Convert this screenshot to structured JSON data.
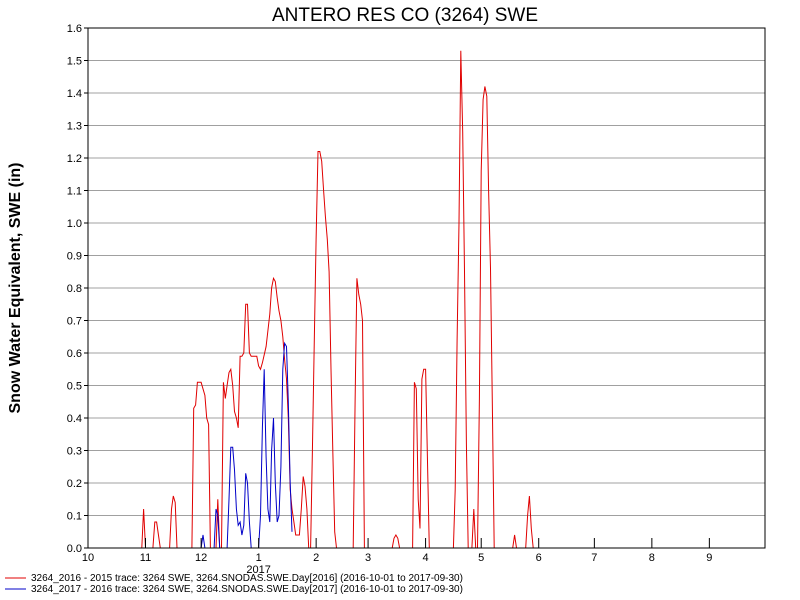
{
  "chart_data": {
    "type": "line",
    "title": "ANTERO RES CO (3264) SWE",
    "ylabel": "Snow Water Equivalent, SWE (in)",
    "xlabel": "",
    "ylim": [
      0,
      1.6
    ],
    "yticks": [
      "0.0",
      "0.1",
      "0.2",
      "0.3",
      "0.4",
      "0.5",
      "0.6",
      "0.7",
      "0.8",
      "0.9",
      "1.0",
      "1.1",
      "1.2",
      "1.3",
      "1.4",
      "1.5",
      "1.6"
    ],
    "xticks": [
      {
        "label": "10",
        "date": "2016-10-01"
      },
      {
        "label": "11",
        "date": "2016-11-01"
      },
      {
        "label": "12",
        "date": "2016-12-01"
      },
      {
        "label": "1",
        "date": "2017-01-01"
      },
      {
        "label": "2",
        "date": "2017-02-01"
      },
      {
        "label": "3",
        "date": "2017-03-01"
      },
      {
        "label": "4",
        "date": "2017-04-01"
      },
      {
        "label": "5",
        "date": "2017-05-01"
      },
      {
        "label": "6",
        "date": "2017-06-01"
      },
      {
        "label": "7",
        "date": "2017-07-01"
      },
      {
        "label": "8",
        "date": "2017-08-01"
      },
      {
        "label": "9",
        "date": "2017-09-01"
      }
    ],
    "year_label": "2017",
    "xlim": [
      "2016-10-01",
      "2017-09-30"
    ],
    "grid": "horizontal",
    "legend_position": "bottom",
    "series": [
      {
        "name": "3264_2016 - 2015 trace: 3264 SWE, 3264.SNODAS.SWE.Day[2016] (2016-10-01 to 2017-09-30)",
        "color": "#e00000",
        "points": [
          [
            "2016-10-30",
            0
          ],
          [
            "2016-10-31",
            0.12
          ],
          [
            "2016-11-01",
            0
          ],
          [
            "2016-11-05",
            0
          ],
          [
            "2016-11-06",
            0.08
          ],
          [
            "2016-11-07",
            0.08
          ],
          [
            "2016-11-09",
            0
          ],
          [
            "2016-11-14",
            0
          ],
          [
            "2016-11-15",
            0.12
          ],
          [
            "2016-11-16",
            0.16
          ],
          [
            "2016-11-17",
            0.14
          ],
          [
            "2016-11-18",
            0
          ],
          [
            "2016-11-26",
            0
          ],
          [
            "2016-11-27",
            0.43
          ],
          [
            "2016-11-28",
            0.44
          ],
          [
            "2016-11-29",
            0.51
          ],
          [
            "2016-12-01",
            0.51
          ],
          [
            "2016-12-03",
            0.47
          ],
          [
            "2016-12-04",
            0.4
          ],
          [
            "2016-12-05",
            0.38
          ],
          [
            "2016-12-06",
            0
          ],
          [
            "2016-12-09",
            0
          ],
          [
            "2016-12-10",
            0.15
          ],
          [
            "2016-12-11",
            0
          ],
          [
            "2016-12-12",
            0
          ],
          [
            "2016-12-13",
            0.51
          ],
          [
            "2016-12-14",
            0.46
          ],
          [
            "2016-12-15",
            0.5
          ],
          [
            "2016-12-16",
            0.54
          ],
          [
            "2016-12-17",
            0.55
          ],
          [
            "2016-12-18",
            0.5
          ],
          [
            "2016-12-19",
            0.42
          ],
          [
            "2016-12-20",
            0.4
          ],
          [
            "2016-12-21",
            0.37
          ],
          [
            "2016-12-22",
            0.59
          ],
          [
            "2016-12-23",
            0.59
          ],
          [
            "2016-12-24",
            0.6
          ],
          [
            "2016-12-25",
            0.75
          ],
          [
            "2016-12-26",
            0.75
          ],
          [
            "2016-12-27",
            0.6
          ],
          [
            "2016-12-28",
            0.59
          ],
          [
            "2016-12-31",
            0.59
          ],
          [
            "2017-01-01",
            0.56
          ],
          [
            "2017-01-02",
            0.55
          ],
          [
            "2017-01-03",
            0.57
          ],
          [
            "2017-01-05",
            0.62
          ],
          [
            "2017-01-07",
            0.72
          ],
          [
            "2017-01-08",
            0.8
          ],
          [
            "2017-01-09",
            0.83
          ],
          [
            "2017-01-10",
            0.82
          ],
          [
            "2017-01-11",
            0.77
          ],
          [
            "2017-01-12",
            0.73
          ],
          [
            "2017-01-13",
            0.7
          ],
          [
            "2017-01-14",
            0.65
          ],
          [
            "2017-01-15",
            0.58
          ],
          [
            "2017-01-16",
            0.52
          ],
          [
            "2017-01-17",
            0.4
          ],
          [
            "2017-01-18",
            0.18
          ],
          [
            "2017-01-19",
            0.12
          ],
          [
            "2017-01-20",
            0.08
          ],
          [
            "2017-01-21",
            0.04
          ],
          [
            "2017-01-23",
            0.04
          ],
          [
            "2017-01-24",
            0.12
          ],
          [
            "2017-01-25",
            0.22
          ],
          [
            "2017-01-26",
            0.19
          ],
          [
            "2017-01-27",
            0.12
          ],
          [
            "2017-01-28",
            0
          ],
          [
            "2017-01-29",
            0
          ],
          [
            "2017-01-30",
            0.3
          ],
          [
            "2017-01-31",
            0.64
          ],
          [
            "2017-02-01",
            0.95
          ],
          [
            "2017-02-02",
            1.22
          ],
          [
            "2017-02-03",
            1.22
          ],
          [
            "2017-02-04",
            1.19
          ],
          [
            "2017-02-05",
            1.1
          ],
          [
            "2017-02-06",
            1.02
          ],
          [
            "2017-02-07",
            0.95
          ],
          [
            "2017-02-08",
            0.85
          ],
          [
            "2017-02-09",
            0.55
          ],
          [
            "2017-02-10",
            0.3
          ],
          [
            "2017-02-11",
            0.05
          ],
          [
            "2017-02-12",
            0
          ],
          [
            "2017-02-21",
            0
          ],
          [
            "2017-02-22",
            0.45
          ],
          [
            "2017-02-23",
            0.83
          ],
          [
            "2017-02-24",
            0.78
          ],
          [
            "2017-02-25",
            0.75
          ],
          [
            "2017-02-26",
            0.7
          ],
          [
            "2017-02-27",
            0
          ],
          [
            "2017-03-14",
            0
          ],
          [
            "2017-03-15",
            0.03
          ],
          [
            "2017-03-16",
            0.04
          ],
          [
            "2017-03-17",
            0.03
          ],
          [
            "2017-03-18",
            0
          ],
          [
            "2017-03-25",
            0
          ],
          [
            "2017-03-26",
            0.51
          ],
          [
            "2017-03-27",
            0.49
          ],
          [
            "2017-03-28",
            0.15
          ],
          [
            "2017-03-29",
            0.06
          ],
          [
            "2017-03-30",
            0.52
          ],
          [
            "2017-03-31",
            0.55
          ],
          [
            "2017-04-01",
            0.55
          ],
          [
            "2017-04-02",
            0.28
          ],
          [
            "2017-04-03",
            0
          ],
          [
            "2017-04-16",
            0
          ],
          [
            "2017-04-17",
            0.18
          ],
          [
            "2017-04-18",
            0.64
          ],
          [
            "2017-04-19",
            1.0
          ],
          [
            "2017-04-20",
            1.53
          ],
          [
            "2017-04-21",
            1.28
          ],
          [
            "2017-04-22",
            0.85
          ],
          [
            "2017-04-23",
            0.32
          ],
          [
            "2017-04-24",
            0
          ],
          [
            "2017-04-26",
            0
          ],
          [
            "2017-04-27",
            0.12
          ],
          [
            "2017-04-28",
            0
          ],
          [
            "2017-04-29",
            0
          ],
          [
            "2017-04-30",
            0.46
          ],
          [
            "2017-05-01",
            1.16
          ],
          [
            "2017-05-02",
            1.38
          ],
          [
            "2017-05-03",
            1.42
          ],
          [
            "2017-05-04",
            1.39
          ],
          [
            "2017-05-05",
            1.1
          ],
          [
            "2017-05-06",
            0.86
          ],
          [
            "2017-05-07",
            0.45
          ],
          [
            "2017-05-08",
            0
          ],
          [
            "2017-05-18",
            0
          ],
          [
            "2017-05-19",
            0.04
          ],
          [
            "2017-05-20",
            0
          ],
          [
            "2017-05-25",
            0
          ],
          [
            "2017-05-26",
            0.1
          ],
          [
            "2017-05-27",
            0.16
          ],
          [
            "2017-05-28",
            0.06
          ],
          [
            "2017-05-29",
            0
          ]
        ]
      },
      {
        "name": "3264_2017 - 2016 trace: 3264 SWE, 3264.SNODAS.SWE.Day[2017] (2016-10-01 to 2017-09-30)",
        "color": "#0000c8",
        "points": [
          [
            "2016-12-01",
            0
          ],
          [
            "2016-12-02",
            0.04
          ],
          [
            "2016-12-03",
            0
          ],
          [
            "2016-12-08",
            0
          ],
          [
            "2016-12-09",
            0.12
          ],
          [
            "2016-12-10",
            0.1
          ],
          [
            "2016-12-11",
            0
          ],
          [
            "2016-12-15",
            0
          ],
          [
            "2016-12-16",
            0.15
          ],
          [
            "2016-12-17",
            0.31
          ],
          [
            "2016-12-18",
            0.31
          ],
          [
            "2016-12-19",
            0.24
          ],
          [
            "2016-12-20",
            0.12
          ],
          [
            "2016-12-21",
            0.07
          ],
          [
            "2016-12-22",
            0.08
          ],
          [
            "2016-12-23",
            0.04
          ],
          [
            "2016-12-24",
            0.07
          ],
          [
            "2016-12-25",
            0.23
          ],
          [
            "2016-12-26",
            0.2
          ],
          [
            "2016-12-27",
            0.08
          ],
          [
            "2016-12-28",
            0
          ],
          [
            "2017-01-01",
            0
          ],
          [
            "2017-01-02",
            0.1
          ],
          [
            "2017-01-03",
            0.37
          ],
          [
            "2017-01-04",
            0.55
          ],
          [
            "2017-01-05",
            0.28
          ],
          [
            "2017-01-06",
            0.12
          ],
          [
            "2017-01-07",
            0.08
          ],
          [
            "2017-01-08",
            0.3
          ],
          [
            "2017-01-09",
            0.4
          ],
          [
            "2017-01-10",
            0.2
          ],
          [
            "2017-01-11",
            0.08
          ],
          [
            "2017-01-12",
            0.1
          ],
          [
            "2017-01-13",
            0.25
          ],
          [
            "2017-01-14",
            0.55
          ],
          [
            "2017-01-15",
            0.63
          ],
          [
            "2017-01-16",
            0.62
          ],
          [
            "2017-01-17",
            0.45
          ],
          [
            "2017-01-18",
            0.2
          ],
          [
            "2017-01-19",
            0.05
          ]
        ]
      }
    ]
  }
}
